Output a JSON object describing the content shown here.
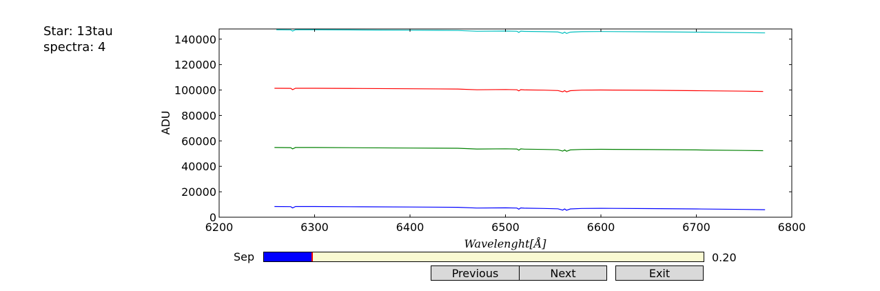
{
  "info": {
    "star_text": "Star: 13tau",
    "spectra_text": "spectra: 4"
  },
  "chart_data": {
    "type": "line",
    "title": "",
    "xlabel": "Wavelenght[Å]",
    "ylabel": "ADU",
    "xlim": [
      6200,
      6800
    ],
    "ylim": [
      0,
      148000
    ],
    "xticks": [
      6200,
      6300,
      6400,
      6500,
      6600,
      6700,
      6800
    ],
    "yticks": [
      0,
      20000,
      40000,
      60000,
      80000,
      100000,
      120000,
      140000
    ],
    "grid": false,
    "legend": "none",
    "series": [
      {
        "color": "#0000ff",
        "x": [
          6258,
          6275,
          6277,
          6280,
          6300,
          6350,
          6400,
          6450,
          6470,
          6500,
          6512,
          6514,
          6516,
          6520,
          6540,
          6555,
          6560,
          6562,
          6564,
          6568,
          6580,
          6600,
          6650,
          6700,
          6750,
          6772
        ],
        "values": [
          8400,
          8300,
          7300,
          8400,
          8400,
          8200,
          8000,
          7800,
          7200,
          7400,
          7200,
          6300,
          7300,
          7100,
          6900,
          6600,
          5600,
          6500,
          5500,
          6500,
          6900,
          7000,
          6800,
          6500,
          6100,
          5900
        ]
      },
      {
        "color": "#008000",
        "x": [
          6258,
          6275,
          6277,
          6280,
          6300,
          6350,
          6400,
          6450,
          6470,
          6500,
          6512,
          6514,
          6516,
          6520,
          6540,
          6555,
          6560,
          6562,
          6564,
          6568,
          6580,
          6600,
          6650,
          6700,
          6750,
          6770
        ],
        "values": [
          54800,
          54700,
          53700,
          54800,
          54800,
          54600,
          54400,
          54200,
          53600,
          53800,
          53600,
          52700,
          53700,
          53500,
          53300,
          53000,
          52000,
          52900,
          51900,
          52900,
          53300,
          53400,
          53200,
          52900,
          52500,
          52300
        ]
      },
      {
        "color": "#ff0000",
        "x": [
          6258,
          6275,
          6277,
          6280,
          6300,
          6350,
          6400,
          6450,
          6470,
          6500,
          6512,
          6514,
          6516,
          6520,
          6540,
          6555,
          6560,
          6562,
          6564,
          6568,
          6580,
          6600,
          6650,
          6700,
          6750,
          6770
        ],
        "values": [
          101400,
          101300,
          100300,
          101400,
          101400,
          101200,
          101000,
          100800,
          100200,
          100400,
          100200,
          99300,
          100300,
          100100,
          99900,
          99600,
          98600,
          99500,
          98500,
          99500,
          99900,
          100000,
          99800,
          99500,
          99100,
          98900
        ]
      },
      {
        "color": "#00bfbf",
        "x": [
          6260,
          6275,
          6277,
          6280,
          6300,
          6350,
          6400,
          6450,
          6470,
          6500,
          6512,
          6514,
          6516,
          6520,
          6540,
          6555,
          6560,
          6562,
          6564,
          6568,
          6580,
          6600,
          6650,
          6700,
          6750,
          6772
        ],
        "values": [
          147400,
          147300,
          146300,
          147400,
          147400,
          147200,
          147000,
          146800,
          146200,
          146400,
          146200,
          145300,
          146300,
          146100,
          145900,
          145600,
          144600,
          145500,
          144500,
          145500,
          145900,
          146000,
          145800,
          145500,
          145100,
          144900
        ]
      }
    ]
  },
  "controls": {
    "slider_label": "Sep",
    "slider_value_text": "0.20",
    "slider_fraction": 0.11,
    "prev_label": "Previous",
    "next_label": "Next",
    "exit_label": "Exit"
  }
}
